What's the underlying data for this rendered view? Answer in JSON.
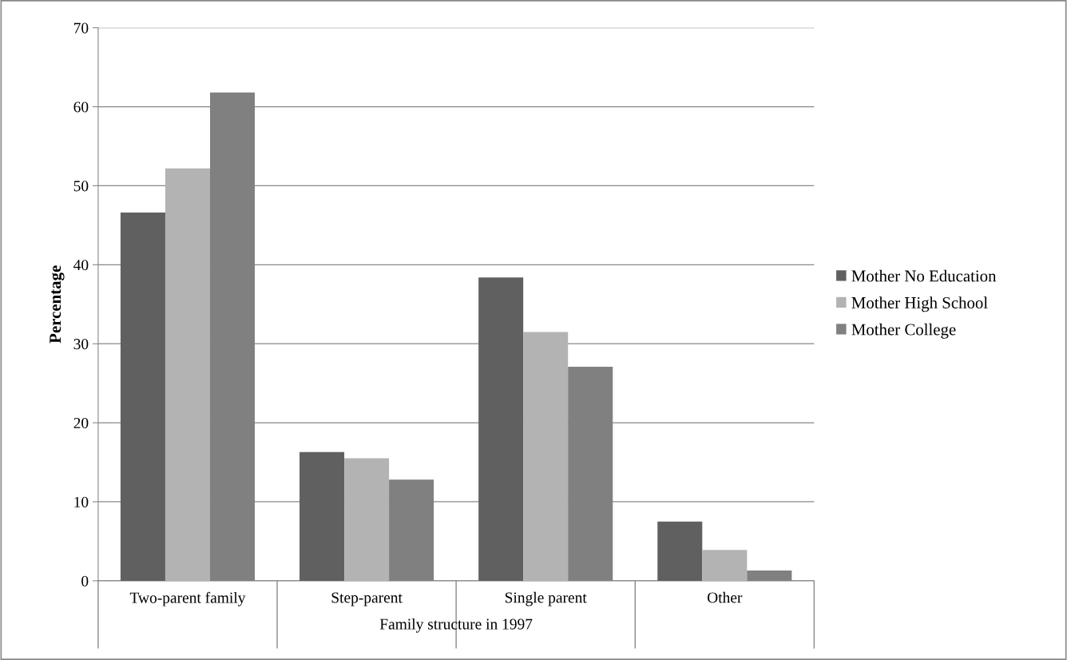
{
  "chart_data": {
    "type": "bar",
    "xlabel": "Family structure in 1997",
    "ylabel": "Percentage",
    "categories": [
      "Two-parent family",
      "Step-parent",
      "Single parent",
      "Other"
    ],
    "series": [
      {
        "name": "Mother No Education",
        "color": "#606060",
        "values": [
          46.6,
          16.3,
          38.4,
          7.5
        ]
      },
      {
        "name": "Mother High School",
        "color": "#b3b3b3",
        "values": [
          52.2,
          15.5,
          31.5,
          3.9
        ]
      },
      {
        "name": "Mother College",
        "color": "#808080",
        "values": [
          61.8,
          12.8,
          27.1,
          1.3
        ]
      }
    ],
    "ylim": [
      0,
      70
    ],
    "yticks": [
      0,
      10,
      20,
      30,
      40,
      50,
      60,
      70
    ],
    "grid": "y",
    "legend": "right"
  }
}
